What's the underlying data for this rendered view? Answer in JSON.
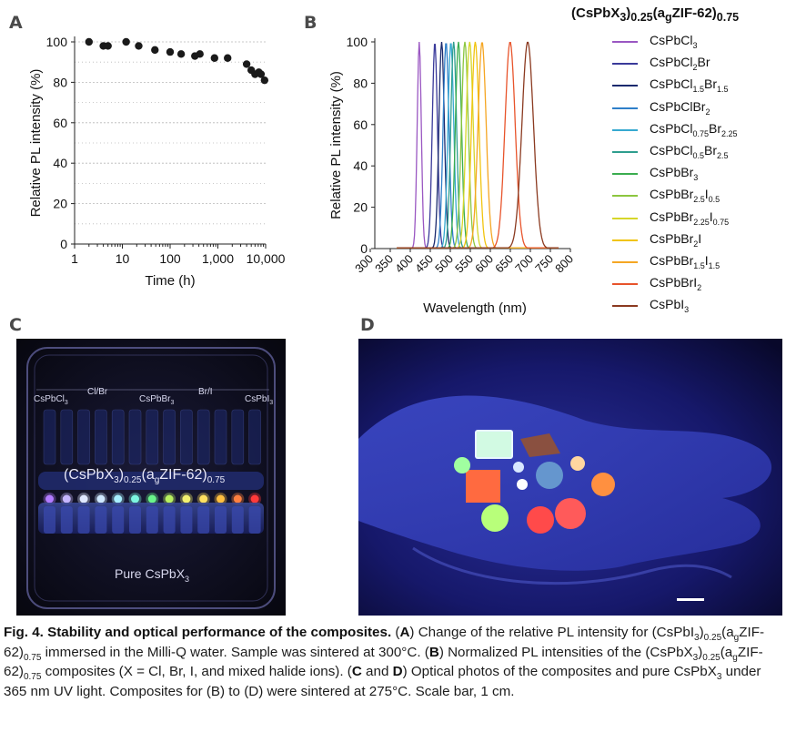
{
  "panels": {
    "a": "A",
    "b": "B",
    "c": "C",
    "d": "D"
  },
  "chart_data": [
    {
      "type": "scatter",
      "panel": "A",
      "xlabel": "Time (h)",
      "ylabel": "Relative PL intensity (%)",
      "xscale": "log",
      "xlim": [
        1,
        10000
      ],
      "ylim": [
        0,
        100
      ],
      "xticks": [
        "1",
        "10",
        "100",
        "1,000",
        "10,000"
      ],
      "yticks": [
        "0",
        "20",
        "40",
        "60",
        "80",
        "100"
      ],
      "grid": "horizontal dotted",
      "points": [
        {
          "x": 2,
          "y": 100
        },
        {
          "x": 4,
          "y": 98
        },
        {
          "x": 5,
          "y": 98
        },
        {
          "x": 12,
          "y": 100
        },
        {
          "x": 22,
          "y": 98
        },
        {
          "x": 48,
          "y": 96
        },
        {
          "x": 100,
          "y": 95
        },
        {
          "x": 170,
          "y": 94
        },
        {
          "x": 330,
          "y": 93
        },
        {
          "x": 420,
          "y": 94
        },
        {
          "x": 850,
          "y": 92
        },
        {
          "x": 1600,
          "y": 92
        },
        {
          "x": 4000,
          "y": 89
        },
        {
          "x": 5000,
          "y": 86
        },
        {
          "x": 6000,
          "y": 84
        },
        {
          "x": 7200,
          "y": 85
        },
        {
          "x": 8000,
          "y": 84
        },
        {
          "x": 9500,
          "y": 81
        }
      ],
      "color": "#1a1a1a"
    },
    {
      "type": "line",
      "panel": "B",
      "xlabel": "Wavelength (nm)",
      "ylabel": "Relative PL intensity (%)",
      "xlim": [
        300,
        800
      ],
      "ylim": [
        0,
        100
      ],
      "xticks": [
        "300",
        "350",
        "400",
        "450",
        "500",
        "550",
        "600",
        "650",
        "700",
        "750",
        "800"
      ],
      "yticks": [
        "0",
        "20",
        "40",
        "60",
        "80",
        "100"
      ],
      "legend_title": "(CsPbX3)0.25(agZIF-62)0.75",
      "legend_position": "right",
      "series": [
        {
          "name": "CsPbCl3",
          "peak": 411,
          "fwhm": 12,
          "color": "#9a57c2"
        },
        {
          "name": "CsPbCl2Br",
          "peak": 450,
          "fwhm": 15,
          "color": "#3a3a9a"
        },
        {
          "name": "CsPbCl1.5Br1.5",
          "peak": 467,
          "fwhm": 16,
          "color": "#1a2a6e"
        },
        {
          "name": "CsPbClBr2",
          "peak": 478,
          "fwhm": 17,
          "color": "#2e7fc9"
        },
        {
          "name": "CsPbCl0.75Br2.25",
          "peak": 490,
          "fwhm": 17,
          "color": "#37a9d0"
        },
        {
          "name": "CsPbCl0.5Br2.5",
          "peak": 497,
          "fwhm": 17,
          "color": "#2e9e8e"
        },
        {
          "name": "CsPbBr3",
          "peak": 509,
          "fwhm": 18,
          "color": "#3aad4f"
        },
        {
          "name": "CsPbBr2.5I0.5",
          "peak": 525,
          "fwhm": 20,
          "color": "#8cc63f"
        },
        {
          "name": "CsPbBr2.25I0.75",
          "peak": 537,
          "fwhm": 21,
          "color": "#d6d62a"
        },
        {
          "name": "CsPbBr2I",
          "peak": 551,
          "fwhm": 22,
          "color": "#f1c40f"
        },
        {
          "name": "CsPbBr1.5I1.5",
          "peak": 568,
          "fwhm": 24,
          "color": "#f5a623"
        },
        {
          "name": "CsPbBrI2",
          "peak": 638,
          "fwhm": 30,
          "color": "#e8542b"
        },
        {
          "name": "CsPbI3",
          "peak": 682,
          "fwhm": 34,
          "color": "#8b3a20"
        }
      ]
    }
  ],
  "legend_title": {
    "main": "(CsPbX",
    "s1": "3",
    "m1": ")",
    "s2": "0.25",
    "m2": "(a",
    "s3": "g",
    "m3": "ZIF-62)",
    "s4": "0.75"
  },
  "legend_rows": [
    [
      {
        "t": "CsPbCl"
      },
      {
        "s": "3"
      }
    ],
    [
      {
        "t": "CsPbCl"
      },
      {
        "s": "2"
      },
      {
        "t": "Br"
      }
    ],
    [
      {
        "t": "CsPbCl"
      },
      {
        "s": "1.5"
      },
      {
        "t": "Br"
      },
      {
        "s": "1.5"
      }
    ],
    [
      {
        "t": "CsPbClBr"
      },
      {
        "s": "2"
      }
    ],
    [
      {
        "t": "CsPbCl"
      },
      {
        "s": "0.75"
      },
      {
        "t": "Br"
      },
      {
        "s": "2.25"
      }
    ],
    [
      {
        "t": "CsPbCl"
      },
      {
        "s": "0.5"
      },
      {
        "t": "Br"
      },
      {
        "s": "2.5"
      }
    ],
    [
      {
        "t": "CsPbBr"
      },
      {
        "s": "3"
      }
    ],
    [
      {
        "t": "CsPbBr"
      },
      {
        "s": "2.5"
      },
      {
        "t": "I"
      },
      {
        "s": "0.5"
      }
    ],
    [
      {
        "t": "CsPbBr"
      },
      {
        "s": "2.25"
      },
      {
        "t": "I"
      },
      {
        "s": "0.75"
      }
    ],
    [
      {
        "t": "CsPbBr"
      },
      {
        "s": "2"
      },
      {
        "t": "I"
      }
    ],
    [
      {
        "t": "CsPbBr"
      },
      {
        "s": "1.5"
      },
      {
        "t": "I"
      },
      {
        "s": "1.5"
      }
    ],
    [
      {
        "t": "CsPbBrI"
      },
      {
        "s": "2"
      }
    ],
    [
      {
        "t": "CsPbI"
      },
      {
        "s": "3"
      }
    ]
  ],
  "photo_c": {
    "label_cl3": "CsPbCl",
    "label_cl3_sub": "3",
    "label_clbr": "Cl/Br",
    "label_br3": "CsPbBr",
    "label_br3_sub": "3",
    "label_bri": "Br/I",
    "label_i3": "CsPbI",
    "label_i3_sub": "3",
    "composite_a": "(CsPbX",
    "composite_b": "3",
    "composite_c": ")",
    "composite_d": "0.25",
    "composite_e": "(a",
    "composite_f": "g",
    "composite_g": "ZIF-62)",
    "composite_h": "0.75",
    "pure_a": "Pure CsPbX",
    "pure_b": "3",
    "glow_colors": [
      "#b27bff",
      "#c6b6ff",
      "#dfe8ff",
      "#cfe8ff",
      "#a8f0ff",
      "#7cf5e0",
      "#6af58a",
      "#b8f060",
      "#f2f070",
      "#ffe060",
      "#ffbf40",
      "#ff8040",
      "#ff3a3a"
    ]
  },
  "photo_d": {
    "disc_colors": [
      "#a8ffb0",
      "#e8f7ff",
      "#8a5040",
      "#ff6a40",
      "#a0ffa0",
      "#6aa0d0",
      "#ffd6a0",
      "#ff9040",
      "#b8ff7a",
      "#ff4a4a",
      "#ff5a5a"
    ]
  },
  "caption": {
    "fig": "Fig. 4. Stability and optical performance of the composites.",
    "p1": " (",
    "a": "A",
    "p2": ") Change of the relative PL intensity for (CsPbI",
    "p2s1": "3",
    "p2b": ")",
    "p2s2": "0.25",
    "p2c": "(a",
    "p2s3": "g",
    "p2d": "ZIF-62)",
    "p2s4": "0.75",
    "p3": " immersed in the Milli-Q water. Sample was sintered at 300°C. (",
    "b": "B",
    "p4": ") Normalized PL intensities of the (CsPbX",
    "p4s1": "3",
    "p4b": ")",
    "p4s2": "0.25",
    "p4c": "(a",
    "p4s3": "g",
    "p4d": "ZIF-62)",
    "p4s4": "0.75",
    "p5": " composites (X = Cl, Br, I, and mixed halide ions). (",
    "c": "C",
    "p6": " and ",
    "d": "D",
    "p7": ") Optical photos of the composites and pure CsPbX",
    "p7s1": "3",
    "p8": " under 365 nm UV light. Composites for (B) to (D) were sintered at 275°C. Scale bar, 1 cm."
  }
}
